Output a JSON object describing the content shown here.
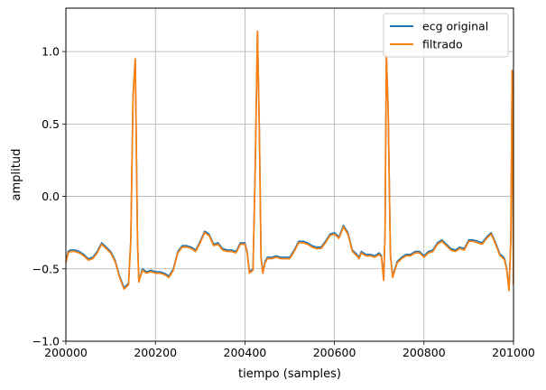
{
  "chart_data": {
    "type": "line",
    "xlabel": "tiempo (samples)",
    "ylabel": "amplitud",
    "xlim": [
      200000,
      201000
    ],
    "ylim": [
      -1.0,
      1.3
    ],
    "x_ticks": [
      200000,
      200200,
      200400,
      200600,
      200800,
      201000
    ],
    "x_tick_labels": [
      "200000",
      "200200",
      "200400",
      "200600",
      "200800",
      "201000"
    ],
    "y_ticks": [
      -1.0,
      -0.5,
      0.0,
      0.5,
      1.0
    ],
    "y_tick_labels": [
      "−1.0",
      "−0.5",
      "0.0",
      "0.5",
      "1.0"
    ],
    "grid": true,
    "legend_position": "top-right",
    "series": [
      {
        "name": "ecg original",
        "color": "#1f77b4",
        "x": [
          200000,
          200005,
          200010,
          200020,
          200030,
          200040,
          200050,
          200060,
          200070,
          200080,
          200090,
          200100,
          200110,
          200120,
          200130,
          200140,
          200145,
          200150,
          200155,
          200160,
          200163,
          200167,
          200171,
          200175,
          200180,
          200190,
          200200,
          200210,
          200220,
          200230,
          200240,
          200250,
          200260,
          200270,
          200280,
          200290,
          200300,
          200310,
          200320,
          200330,
          200340,
          200350,
          200360,
          200370,
          200380,
          200390,
          200400,
          200405,
          200410,
          200418,
          200423,
          200428,
          200432,
          200436,
          200440,
          200445,
          200450,
          200460,
          200470,
          200480,
          200490,
          200500,
          200510,
          200520,
          200530,
          200540,
          200550,
          200560,
          200570,
          200580,
          200590,
          200600,
          200610,
          200620,
          200630,
          200640,
          200650,
          200655,
          200660,
          200670,
          200680,
          200690,
          200695,
          200700,
          200705,
          200710,
          200713,
          200716,
          200720,
          200725,
          200730,
          200740,
          200750,
          200760,
          200770,
          200780,
          200790,
          200800,
          200810,
          200820,
          200830,
          200840,
          200850,
          200860,
          200870,
          200880,
          200890,
          200900,
          200910,
          200920,
          200930,
          200940,
          200950,
          200960,
          200970,
          200975,
          200980,
          200985,
          200990,
          200994,
          200997,
          201000
        ],
        "y": [
          -0.45,
          -0.38,
          -0.37,
          -0.37,
          -0.38,
          -0.4,
          -0.43,
          -0.42,
          -0.38,
          -0.32,
          -0.35,
          -0.38,
          -0.44,
          -0.55,
          -0.63,
          -0.6,
          -0.3,
          0.7,
          0.95,
          -0.3,
          -0.58,
          -0.54,
          -0.5,
          -0.51,
          -0.52,
          -0.51,
          -0.52,
          -0.52,
          -0.53,
          -0.55,
          -0.5,
          -0.38,
          -0.34,
          -0.34,
          -0.35,
          -0.37,
          -0.31,
          -0.24,
          -0.26,
          -0.33,
          -0.32,
          -0.36,
          -0.37,
          -0.37,
          -0.38,
          -0.32,
          -0.32,
          -0.38,
          -0.52,
          -0.5,
          0.2,
          1.14,
          0.5,
          -0.42,
          -0.52,
          -0.45,
          -0.42,
          -0.42,
          -0.41,
          -0.42,
          -0.42,
          -0.42,
          -0.37,
          -0.31,
          -0.31,
          -0.32,
          -0.34,
          -0.35,
          -0.35,
          -0.31,
          -0.26,
          -0.25,
          -0.28,
          -0.2,
          -0.25,
          -0.37,
          -0.4,
          -0.42,
          -0.38,
          -0.4,
          -0.4,
          -0.41,
          -0.4,
          -0.39,
          -0.41,
          -0.57,
          -0.25,
          0.98,
          0.6,
          -0.4,
          -0.55,
          -0.45,
          -0.42,
          -0.4,
          -0.4,
          -0.38,
          -0.38,
          -0.41,
          -0.38,
          -0.37,
          -0.32,
          -0.3,
          -0.33,
          -0.36,
          -0.37,
          -0.35,
          -0.36,
          -0.3,
          -0.3,
          -0.31,
          -0.32,
          -0.28,
          -0.25,
          -0.32,
          -0.4,
          -0.41,
          -0.43,
          -0.5,
          -0.64,
          -0.3,
          0.87,
          -0.6
        ]
      },
      {
        "name": "filtrado",
        "color": "#ff7f0e",
        "x": [
          200000,
          200005,
          200010,
          200020,
          200030,
          200040,
          200050,
          200060,
          200070,
          200080,
          200090,
          200100,
          200110,
          200120,
          200130,
          200140,
          200145,
          200150,
          200155,
          200160,
          200163,
          200167,
          200171,
          200175,
          200180,
          200190,
          200200,
          200210,
          200220,
          200230,
          200240,
          200250,
          200260,
          200270,
          200280,
          200290,
          200300,
          200310,
          200320,
          200330,
          200340,
          200350,
          200360,
          200370,
          200380,
          200390,
          200400,
          200405,
          200410,
          200418,
          200423,
          200428,
          200432,
          200436,
          200440,
          200445,
          200450,
          200460,
          200470,
          200480,
          200490,
          200500,
          200510,
          200520,
          200530,
          200540,
          200550,
          200560,
          200570,
          200580,
          200590,
          200600,
          200610,
          200620,
          200630,
          200640,
          200650,
          200655,
          200660,
          200670,
          200680,
          200690,
          200695,
          200700,
          200705,
          200710,
          200713,
          200716,
          200720,
          200725,
          200730,
          200740,
          200750,
          200760,
          200770,
          200780,
          200790,
          200800,
          200810,
          200820,
          200830,
          200840,
          200850,
          200860,
          200870,
          200880,
          200890,
          200900,
          200910,
          200920,
          200930,
          200940,
          200950,
          200960,
          200970,
          200975,
          200980,
          200985,
          200990,
          200994,
          200997,
          201000
        ],
        "y": [
          -0.46,
          -0.39,
          -0.38,
          -0.38,
          -0.39,
          -0.41,
          -0.44,
          -0.43,
          -0.39,
          -0.33,
          -0.36,
          -0.39,
          -0.45,
          -0.56,
          -0.64,
          -0.61,
          -0.31,
          0.68,
          0.95,
          -0.31,
          -0.59,
          -0.55,
          -0.51,
          -0.52,
          -0.53,
          -0.52,
          -0.53,
          -0.53,
          -0.54,
          -0.56,
          -0.51,
          -0.39,
          -0.35,
          -0.35,
          -0.36,
          -0.38,
          -0.32,
          -0.25,
          -0.27,
          -0.34,
          -0.33,
          -0.37,
          -0.38,
          -0.38,
          -0.39,
          -0.33,
          -0.33,
          -0.39,
          -0.53,
          -0.51,
          0.19,
          1.14,
          0.49,
          -0.43,
          -0.53,
          -0.46,
          -0.43,
          -0.43,
          -0.42,
          -0.43,
          -0.43,
          -0.43,
          -0.38,
          -0.32,
          -0.32,
          -0.33,
          -0.35,
          -0.36,
          -0.36,
          -0.32,
          -0.27,
          -0.26,
          -0.29,
          -0.21,
          -0.26,
          -0.38,
          -0.41,
          -0.43,
          -0.39,
          -0.41,
          -0.41,
          -0.42,
          -0.41,
          -0.4,
          -0.42,
          -0.58,
          -0.26,
          0.98,
          0.59,
          -0.41,
          -0.56,
          -0.46,
          -0.43,
          -0.41,
          -0.41,
          -0.39,
          -0.39,
          -0.42,
          -0.39,
          -0.38,
          -0.33,
          -0.31,
          -0.34,
          -0.37,
          -0.38,
          -0.36,
          -0.37,
          -0.31,
          -0.31,
          -0.32,
          -0.33,
          -0.29,
          -0.26,
          -0.33,
          -0.41,
          -0.42,
          -0.44,
          -0.51,
          -0.65,
          -0.31,
          0.87,
          -0.61
        ]
      }
    ]
  }
}
